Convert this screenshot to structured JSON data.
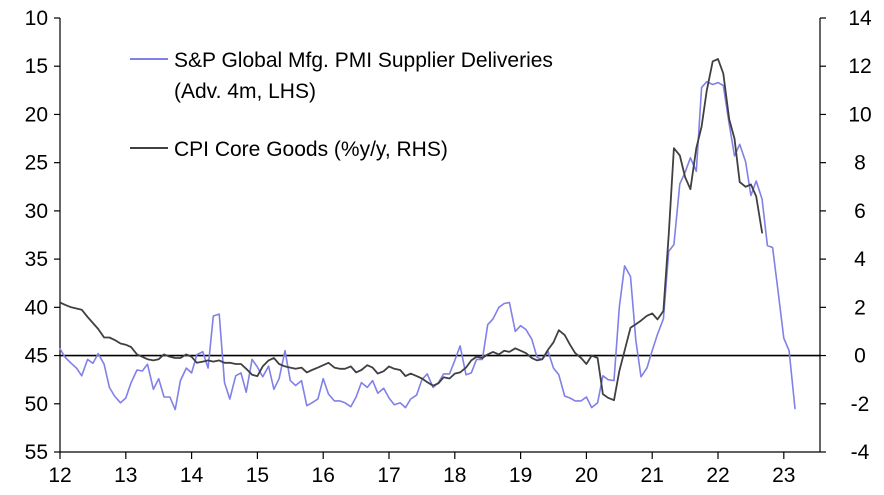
{
  "chart_data": {
    "type": "line",
    "title": "",
    "xlabel": "",
    "x_ticks": [
      "12",
      "13",
      "14",
      "15",
      "16",
      "17",
      "18",
      "19",
      "20",
      "21",
      "22",
      "23"
    ],
    "x_range": [
      2012,
      2023.55
    ],
    "left_axis": {
      "label": "",
      "inverted": true,
      "range": [
        10,
        55
      ],
      "ticks": [
        10,
        15,
        20,
        25,
        30,
        35,
        40,
        45,
        50,
        55
      ]
    },
    "right_axis": {
      "label": "",
      "range": [
        -4,
        14
      ],
      "ticks": [
        -4,
        -2,
        0,
        2,
        4,
        6,
        8,
        10,
        12,
        14
      ]
    },
    "zero_line_right": 0,
    "legend": [
      {
        "lines": [
          "S&P Global Mfg. PMI Supplier Deliveries",
          "(Adv. 4m, LHS)"
        ],
        "color": "#8080e8"
      },
      {
        "lines": [
          "CPI Core Goods (%y/y, RHS)"
        ],
        "color": "#404040"
      }
    ],
    "series": [
      {
        "name": "S&P Global Mfg. PMI Supplier Deliveries (Adv. 4m, LHS)",
        "axis": "left",
        "color": "#8080e8",
        "points": [
          [
            2012.0,
            44.3
          ],
          [
            2012.08,
            45.2
          ],
          [
            2012.17,
            45.8
          ],
          [
            2012.25,
            46.3
          ],
          [
            2012.33,
            47.1
          ],
          [
            2012.42,
            45.4
          ],
          [
            2012.5,
            45.8
          ],
          [
            2012.58,
            44.8
          ],
          [
            2012.67,
            45.9
          ],
          [
            2012.75,
            48.3
          ],
          [
            2012.83,
            49.2
          ],
          [
            2012.92,
            49.9
          ],
          [
            2013.0,
            49.4
          ],
          [
            2013.08,
            47.8
          ],
          [
            2013.17,
            46.5
          ],
          [
            2013.25,
            46.6
          ],
          [
            2013.33,
            45.9
          ],
          [
            2013.42,
            48.5
          ],
          [
            2013.5,
            47.4
          ],
          [
            2013.58,
            49.3
          ],
          [
            2013.67,
            49.3
          ],
          [
            2013.75,
            50.6
          ],
          [
            2013.83,
            47.6
          ],
          [
            2013.92,
            46.3
          ],
          [
            2014.0,
            46.8
          ],
          [
            2014.08,
            44.9
          ],
          [
            2014.17,
            44.6
          ],
          [
            2014.25,
            46.3
          ],
          [
            2014.33,
            40.9
          ],
          [
            2014.42,
            40.7
          ],
          [
            2014.5,
            47.8
          ],
          [
            2014.58,
            49.5
          ],
          [
            2014.67,
            47.1
          ],
          [
            2014.75,
            46.8
          ],
          [
            2014.83,
            48.8
          ],
          [
            2014.92,
            45.4
          ],
          [
            2015.0,
            46.2
          ],
          [
            2015.08,
            47.2
          ],
          [
            2015.17,
            46.1
          ],
          [
            2015.25,
            48.5
          ],
          [
            2015.33,
            47.4
          ],
          [
            2015.42,
            44.5
          ],
          [
            2015.5,
            47.6
          ],
          [
            2015.58,
            48.1
          ],
          [
            2015.67,
            47.6
          ],
          [
            2015.75,
            50.2
          ],
          [
            2015.83,
            49.9
          ],
          [
            2015.92,
            49.5
          ],
          [
            2016.0,
            47.4
          ],
          [
            2016.08,
            49.0
          ],
          [
            2016.17,
            49.7
          ],
          [
            2016.25,
            49.7
          ],
          [
            2016.33,
            49.9
          ],
          [
            2016.42,
            50.3
          ],
          [
            2016.5,
            49.3
          ],
          [
            2016.58,
            47.8
          ],
          [
            2016.67,
            48.3
          ],
          [
            2016.75,
            47.6
          ],
          [
            2016.83,
            48.9
          ],
          [
            2016.92,
            48.4
          ],
          [
            2017.0,
            49.4
          ],
          [
            2017.08,
            50.1
          ],
          [
            2017.17,
            49.9
          ],
          [
            2017.25,
            50.4
          ],
          [
            2017.33,
            49.5
          ],
          [
            2017.42,
            49.1
          ],
          [
            2017.5,
            47.5
          ],
          [
            2017.58,
            46.9
          ],
          [
            2017.67,
            48.3
          ],
          [
            2017.75,
            47.8
          ],
          [
            2017.83,
            46.9
          ],
          [
            2017.92,
            46.9
          ],
          [
            2018.0,
            45.5
          ],
          [
            2018.08,
            44.0
          ],
          [
            2018.17,
            47.0
          ],
          [
            2018.25,
            46.8
          ],
          [
            2018.33,
            45.4
          ],
          [
            2018.42,
            45.4
          ],
          [
            2018.5,
            41.8
          ],
          [
            2018.58,
            41.2
          ],
          [
            2018.67,
            40.0
          ],
          [
            2018.75,
            39.6
          ],
          [
            2018.83,
            39.5
          ],
          [
            2018.92,
            42.5
          ],
          [
            2019.0,
            41.9
          ],
          [
            2019.08,
            42.3
          ],
          [
            2019.17,
            43.3
          ],
          [
            2019.25,
            45.2
          ],
          [
            2019.33,
            45.4
          ],
          [
            2019.42,
            44.6
          ],
          [
            2019.5,
            46.3
          ],
          [
            2019.58,
            47.0
          ],
          [
            2019.67,
            49.2
          ],
          [
            2019.75,
            49.4
          ],
          [
            2019.83,
            49.7
          ],
          [
            2019.92,
            49.7
          ],
          [
            2020.0,
            49.3
          ],
          [
            2020.08,
            50.4
          ],
          [
            2020.17,
            49.9
          ],
          [
            2020.25,
            47.1
          ],
          [
            2020.33,
            47.5
          ],
          [
            2020.42,
            47.6
          ],
          [
            2020.5,
            40.0
          ],
          [
            2020.58,
            35.7
          ],
          [
            2020.67,
            36.8
          ],
          [
            2020.75,
            43.4
          ],
          [
            2020.83,
            47.2
          ],
          [
            2020.92,
            46.3
          ],
          [
            2021.0,
            44.5
          ],
          [
            2021.08,
            42.8
          ],
          [
            2021.17,
            41.2
          ],
          [
            2021.25,
            34.2
          ],
          [
            2021.33,
            33.5
          ],
          [
            2021.42,
            27.2
          ],
          [
            2021.5,
            26.0
          ],
          [
            2021.58,
            24.5
          ],
          [
            2021.67,
            25.9
          ],
          [
            2021.75,
            17.2
          ],
          [
            2021.83,
            16.6
          ],
          [
            2021.92,
            16.9
          ],
          [
            2022.0,
            16.7
          ],
          [
            2022.08,
            17.0
          ],
          [
            2022.17,
            21.0
          ],
          [
            2022.25,
            24.3
          ],
          [
            2022.33,
            23.1
          ],
          [
            2022.42,
            24.9
          ],
          [
            2022.5,
            28.4
          ],
          [
            2022.58,
            26.9
          ],
          [
            2022.67,
            28.8
          ],
          [
            2022.75,
            33.6
          ],
          [
            2022.83,
            33.8
          ],
          [
            2022.92,
            38.7
          ],
          [
            2023.0,
            43.2
          ],
          [
            2023.08,
            44.5
          ],
          [
            2023.17,
            50.5
          ]
        ]
      },
      {
        "name": "CPI Core Goods (%y/y, RHS)",
        "axis": "right",
        "color": "#404040",
        "points": [
          [
            2012.0,
            2.2
          ],
          [
            2012.08,
            2.1
          ],
          [
            2012.17,
            2.0
          ],
          [
            2012.25,
            1.95
          ],
          [
            2012.33,
            1.9
          ],
          [
            2012.42,
            1.6
          ],
          [
            2012.5,
            1.35
          ],
          [
            2012.58,
            1.1
          ],
          [
            2012.67,
            0.75
          ],
          [
            2012.75,
            0.75
          ],
          [
            2012.83,
            0.65
          ],
          [
            2012.92,
            0.5
          ],
          [
            2013.0,
            0.45
          ],
          [
            2013.08,
            0.35
          ],
          [
            2013.17,
            0.05
          ],
          [
            2013.25,
            -0.05
          ],
          [
            2013.33,
            -0.15
          ],
          [
            2013.42,
            -0.2
          ],
          [
            2013.5,
            -0.15
          ],
          [
            2013.58,
            0.05
          ],
          [
            2013.67,
            -0.05
          ],
          [
            2013.75,
            -0.1
          ],
          [
            2013.83,
            -0.1
          ],
          [
            2013.92,
            0.05
          ],
          [
            2014.0,
            -0.05
          ],
          [
            2014.08,
            -0.3
          ],
          [
            2014.17,
            -0.25
          ],
          [
            2014.25,
            -0.2
          ],
          [
            2014.33,
            -0.25
          ],
          [
            2014.42,
            -0.2
          ],
          [
            2014.5,
            -0.3
          ],
          [
            2014.58,
            -0.3
          ],
          [
            2014.67,
            -0.35
          ],
          [
            2014.75,
            -0.35
          ],
          [
            2014.83,
            -0.55
          ],
          [
            2014.92,
            -0.8
          ],
          [
            2015.0,
            -0.85
          ],
          [
            2015.08,
            -0.45
          ],
          [
            2015.17,
            -0.2
          ],
          [
            2015.25,
            -0.1
          ],
          [
            2015.33,
            -0.35
          ],
          [
            2015.42,
            -0.45
          ],
          [
            2015.5,
            -0.5
          ],
          [
            2015.58,
            -0.55
          ],
          [
            2015.67,
            -0.5
          ],
          [
            2015.75,
            -0.7
          ],
          [
            2015.83,
            -0.6
          ],
          [
            2015.92,
            -0.5
          ],
          [
            2016.0,
            -0.4
          ],
          [
            2016.08,
            -0.3
          ],
          [
            2016.17,
            -0.5
          ],
          [
            2016.25,
            -0.55
          ],
          [
            2016.33,
            -0.55
          ],
          [
            2016.42,
            -0.45
          ],
          [
            2016.5,
            -0.7
          ],
          [
            2016.58,
            -0.6
          ],
          [
            2016.67,
            -0.4
          ],
          [
            2016.75,
            -0.5
          ],
          [
            2016.83,
            -0.75
          ],
          [
            2016.92,
            -0.65
          ],
          [
            2017.0,
            -0.45
          ],
          [
            2017.08,
            -0.55
          ],
          [
            2017.17,
            -0.6
          ],
          [
            2017.25,
            -0.85
          ],
          [
            2017.33,
            -0.75
          ],
          [
            2017.42,
            -0.85
          ],
          [
            2017.5,
            -0.95
          ],
          [
            2017.58,
            -1.1
          ],
          [
            2017.67,
            -1.25
          ],
          [
            2017.75,
            -1.15
          ],
          [
            2017.83,
            -0.9
          ],
          [
            2017.92,
            -0.95
          ],
          [
            2018.0,
            -0.75
          ],
          [
            2018.08,
            -0.7
          ],
          [
            2018.17,
            -0.5
          ],
          [
            2018.25,
            -0.2
          ],
          [
            2018.33,
            -0.05
          ],
          [
            2018.42,
            -0.1
          ],
          [
            2018.5,
            0.05
          ],
          [
            2018.58,
            0.15
          ],
          [
            2018.67,
            0.05
          ],
          [
            2018.75,
            0.2
          ],
          [
            2018.83,
            0.15
          ],
          [
            2018.92,
            0.3
          ],
          [
            2019.0,
            0.2
          ],
          [
            2019.08,
            0.1
          ],
          [
            2019.17,
            -0.1
          ],
          [
            2019.25,
            -0.2
          ],
          [
            2019.33,
            -0.15
          ],
          [
            2019.42,
            0.25
          ],
          [
            2019.5,
            0.55
          ],
          [
            2019.58,
            1.05
          ],
          [
            2019.67,
            0.85
          ],
          [
            2019.75,
            0.45
          ],
          [
            2019.83,
            0.1
          ],
          [
            2019.92,
            -0.1
          ],
          [
            2020.0,
            -0.35
          ],
          [
            2020.08,
            0.0
          ],
          [
            2020.17,
            -0.1
          ],
          [
            2020.25,
            -1.6
          ],
          [
            2020.33,
            -1.75
          ],
          [
            2020.42,
            -1.85
          ],
          [
            2020.5,
            -0.65
          ],
          [
            2020.58,
            0.2
          ],
          [
            2020.67,
            1.15
          ],
          [
            2020.75,
            1.3
          ],
          [
            2020.83,
            1.45
          ],
          [
            2020.92,
            1.65
          ],
          [
            2021.0,
            1.75
          ],
          [
            2021.08,
            1.5
          ],
          [
            2021.17,
            1.85
          ],
          [
            2021.25,
            5.0
          ],
          [
            2021.33,
            8.6
          ],
          [
            2021.42,
            8.3
          ],
          [
            2021.5,
            7.4
          ],
          [
            2021.58,
            6.9
          ],
          [
            2021.67,
            8.6
          ],
          [
            2021.75,
            9.5
          ],
          [
            2021.83,
            11.0
          ],
          [
            2021.92,
            12.2
          ],
          [
            2022.0,
            12.3
          ],
          [
            2022.08,
            11.7
          ],
          [
            2022.17,
            9.8
          ],
          [
            2022.25,
            9.0
          ],
          [
            2022.33,
            7.2
          ],
          [
            2022.42,
            7.0
          ],
          [
            2022.5,
            7.1
          ],
          [
            2022.58,
            6.6
          ],
          [
            2022.67,
            5.1
          ]
        ]
      }
    ]
  }
}
